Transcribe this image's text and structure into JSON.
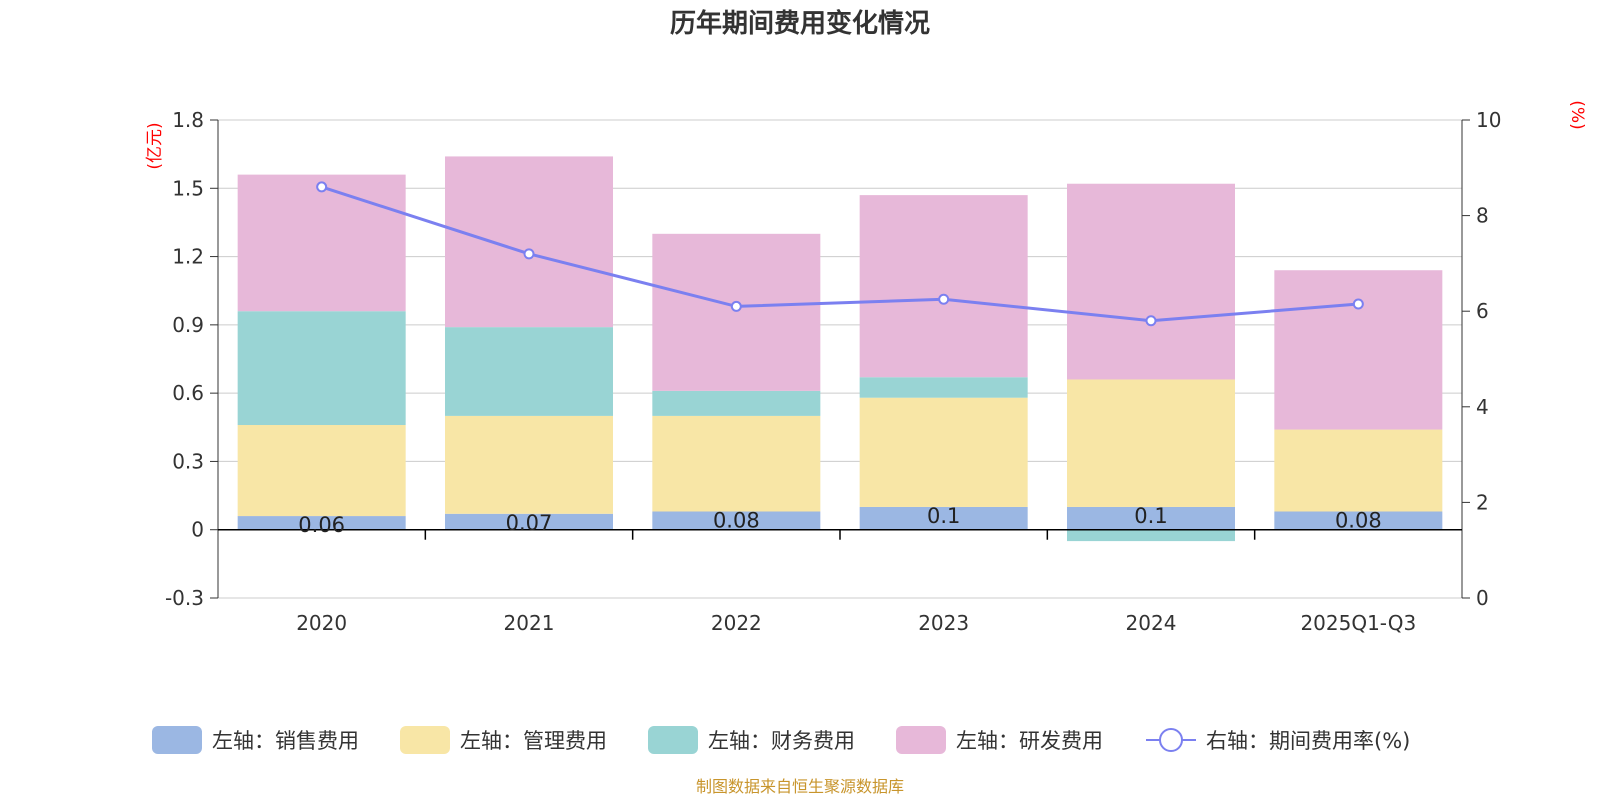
{
  "chart_data": {
    "type": "bar",
    "stacked": true,
    "title": "历年期间费用变化情况",
    "categories": [
      "2020",
      "2021",
      "2022",
      "2023",
      "2024",
      "2025Q1-Q3"
    ],
    "series": [
      {
        "name": "左轴：销售费用",
        "axis": "left",
        "color": "#9bb7e3",
        "values": [
          0.06,
          0.07,
          0.08,
          0.1,
          0.1,
          0.08
        ],
        "labels": [
          "0.06",
          "0.07",
          "0.08",
          "0.1",
          "0.1",
          "0.08"
        ]
      },
      {
        "name": "左轴：管理费用",
        "axis": "left",
        "color": "#f8e6a6",
        "values": [
          0.4,
          0.43,
          0.42,
          0.48,
          0.56,
          0.36
        ]
      },
      {
        "name": "左轴：财务费用",
        "axis": "left",
        "color": "#99d4d4",
        "values": [
          0.5,
          0.39,
          0.11,
          0.09,
          -0.05,
          0.0
        ]
      },
      {
        "name": "左轴：研发费用",
        "axis": "left",
        "color": "#e7b8d9",
        "values": [
          0.6,
          0.75,
          0.69,
          0.8,
          0.86,
          0.7
        ]
      }
    ],
    "line_series": {
      "name": "右轴：期间费用率(%)",
      "axis": "right",
      "color": "#7b80f0",
      "values": [
        8.6,
        7.2,
        6.1,
        6.25,
        5.8,
        6.15
      ]
    },
    "left_axis": {
      "unit": "(亿元)",
      "ylim": [
        -0.3,
        1.8
      ],
      "ticks": [
        "1.8",
        "1.5",
        "1.2",
        "0.9",
        "0.6",
        "0.3",
        "0",
        "-0.3"
      ],
      "tick_values": [
        1.8,
        1.5,
        1.2,
        0.9,
        0.6,
        0.3,
        0,
        -0.3
      ]
    },
    "right_axis": {
      "unit": "(%)",
      "ylim": [
        0,
        10
      ],
      "ticks": [
        "10",
        "8",
        "6",
        "4",
        "2",
        "0"
      ],
      "tick_values": [
        10,
        8,
        6,
        4,
        2,
        0
      ]
    },
    "legend_position": "bottom",
    "grid": true
  },
  "source": "制图数据来自恒生聚源数据库"
}
